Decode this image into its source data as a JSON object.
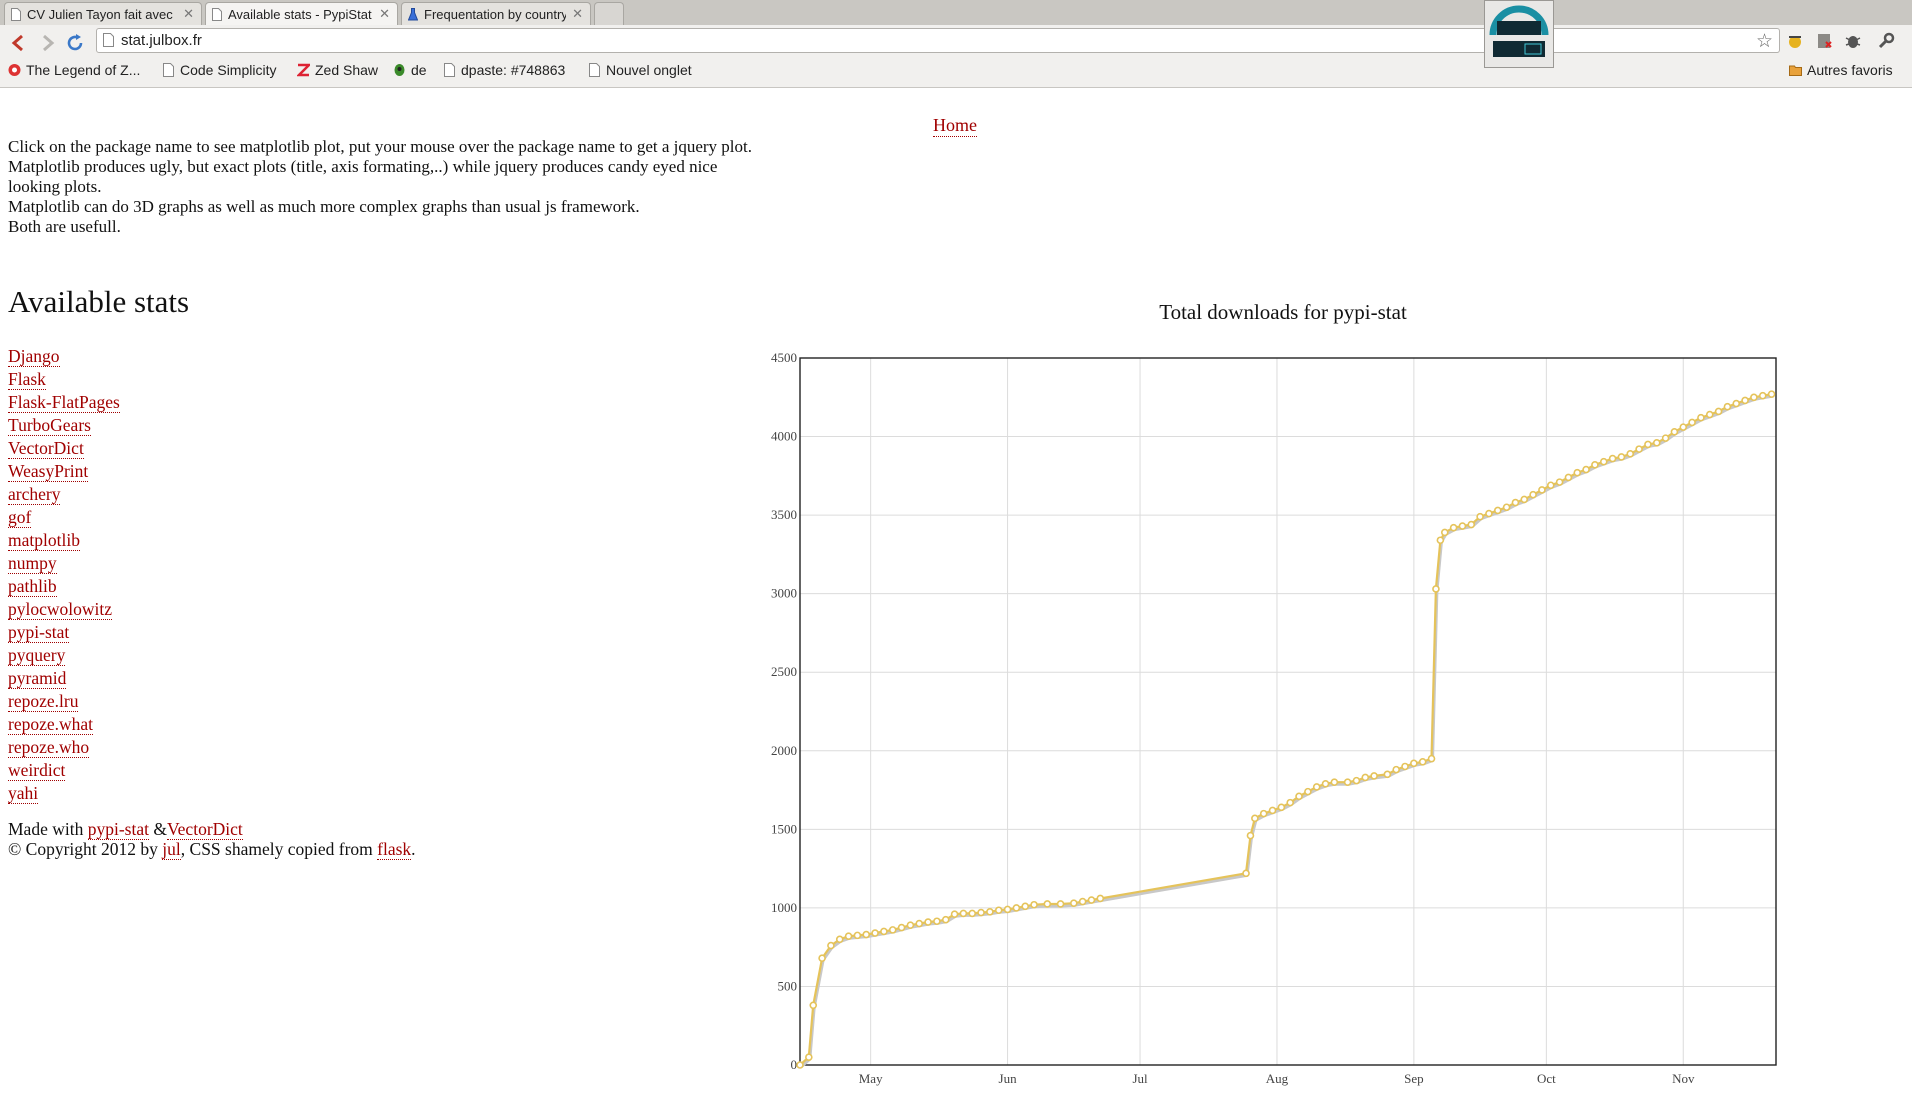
{
  "tabs": [
    {
      "label": "CV Julien Tayon fait avec i",
      "active": false
    },
    {
      "label": "Available stats - PypiStat",
      "active": true
    },
    {
      "label": "Frequentation by country",
      "active": false
    }
  ],
  "toolbar": {
    "url": "stat.julbox.fr"
  },
  "bookmarks": [
    "The Legend of Z...",
    "Code Simplicity",
    "Zed Shaw",
    "de",
    "dpaste: #748863",
    "Nouvel onglet"
  ],
  "bookmarks_other": "Autres favoris",
  "page": {
    "home_link": "Home",
    "intro": [
      "Click on the package name to see matplotlib plot, put your mouse over the package name to get a jquery plot.",
      "Matplotlib produces ugly, but exact plots (title, axis formating,..) while jquery produces candy eyed nice looking plots.",
      "Matplotlib can do 3D graphs as well as much more complex graphs than usual js framework.",
      "Both are usefull."
    ],
    "heading": "Available stats",
    "packages": [
      "Django",
      "Flask",
      "Flask-FlatPages",
      "TurboGears",
      "VectorDict",
      "WeasyPrint",
      "archery",
      "gof",
      "matplotlib",
      "numpy",
      "pathlib",
      "pylocwolowitz",
      "pypi-stat",
      "pyquery",
      "pyramid",
      "repoze.lru",
      "repoze.what",
      "repoze.who",
      "weirdict",
      "yahi"
    ],
    "footer": {
      "made_with": "Made with",
      "link1": "pypi-stat",
      "amp": " &",
      "link2": "VectorDict",
      "copyright_prefix": "© Copyright 2012 by",
      "author_link": "jul",
      "copyright_mid": ", CSS shamely copied from",
      "flask_link": "flask",
      "period": "."
    }
  },
  "chart_data": {
    "type": "line",
    "title": "Total downloads for pypi-stat",
    "x_ticks": [
      "May",
      "Jun",
      "Jul",
      "Aug",
      "Sep",
      "Oct",
      "Nov"
    ],
    "x_tick_dates": [
      "2012-05-01",
      "2012-06-01",
      "2012-07-01",
      "2012-08-01",
      "2012-09-01",
      "2012-10-01",
      "2012-11-01"
    ],
    "x_range": [
      "2012-04-15",
      "2012-11-22"
    ],
    "y_ticks": [
      0,
      500,
      1000,
      1500,
      2000,
      2500,
      3000,
      3500,
      4000,
      4500
    ],
    "ylim": [
      0,
      4500
    ],
    "grid": true,
    "line_color": "#e5c35a",
    "series": [
      {
        "points": [
          [
            "2012-04-15",
            0
          ],
          [
            "2012-04-17",
            50
          ],
          [
            "2012-04-18",
            380
          ],
          [
            "2012-04-20",
            680
          ],
          [
            "2012-04-22",
            760
          ],
          [
            "2012-04-24",
            800
          ],
          [
            "2012-04-26",
            820
          ],
          [
            "2012-04-28",
            825
          ],
          [
            "2012-04-30",
            830
          ],
          [
            "2012-05-02",
            840
          ],
          [
            "2012-05-04",
            850
          ],
          [
            "2012-05-06",
            860
          ],
          [
            "2012-05-08",
            875
          ],
          [
            "2012-05-10",
            890
          ],
          [
            "2012-05-12",
            900
          ],
          [
            "2012-05-14",
            910
          ],
          [
            "2012-05-16",
            915
          ],
          [
            "2012-05-18",
            925
          ],
          [
            "2012-05-20",
            960
          ],
          [
            "2012-05-22",
            965
          ],
          [
            "2012-05-24",
            965
          ],
          [
            "2012-05-26",
            970
          ],
          [
            "2012-05-28",
            975
          ],
          [
            "2012-05-30",
            985
          ],
          [
            "2012-06-01",
            990
          ],
          [
            "2012-06-03",
            1000
          ],
          [
            "2012-06-05",
            1010
          ],
          [
            "2012-06-07",
            1020
          ],
          [
            "2012-06-10",
            1025
          ],
          [
            "2012-06-13",
            1025
          ],
          [
            "2012-06-16",
            1030
          ],
          [
            "2012-06-18",
            1040
          ],
          [
            "2012-06-20",
            1050
          ],
          [
            "2012-06-22",
            1060
          ],
          [
            "2012-07-25",
            1220
          ],
          [
            "2012-07-26",
            1460
          ],
          [
            "2012-07-27",
            1570
          ],
          [
            "2012-07-29",
            1600
          ],
          [
            "2012-07-31",
            1620
          ],
          [
            "2012-08-02",
            1640
          ],
          [
            "2012-08-04",
            1670
          ],
          [
            "2012-08-06",
            1710
          ],
          [
            "2012-08-08",
            1740
          ],
          [
            "2012-08-10",
            1770
          ],
          [
            "2012-08-12",
            1790
          ],
          [
            "2012-08-14",
            1800
          ],
          [
            "2012-08-17",
            1800
          ],
          [
            "2012-08-19",
            1810
          ],
          [
            "2012-08-21",
            1830
          ],
          [
            "2012-08-23",
            1840
          ],
          [
            "2012-08-26",
            1850
          ],
          [
            "2012-08-28",
            1880
          ],
          [
            "2012-08-30",
            1900
          ],
          [
            "2012-09-01",
            1920
          ],
          [
            "2012-09-03",
            1930
          ],
          [
            "2012-09-05",
            1950
          ],
          [
            "2012-09-06",
            3030
          ],
          [
            "2012-09-07",
            3340
          ],
          [
            "2012-09-08",
            3390
          ],
          [
            "2012-09-10",
            3420
          ],
          [
            "2012-09-12",
            3430
          ],
          [
            "2012-09-14",
            3440
          ],
          [
            "2012-09-16",
            3490
          ],
          [
            "2012-09-18",
            3510
          ],
          [
            "2012-09-20",
            3530
          ],
          [
            "2012-09-22",
            3550
          ],
          [
            "2012-09-24",
            3580
          ],
          [
            "2012-09-26",
            3600
          ],
          [
            "2012-09-28",
            3630
          ],
          [
            "2012-09-30",
            3660
          ],
          [
            "2012-10-02",
            3690
          ],
          [
            "2012-10-04",
            3710
          ],
          [
            "2012-10-06",
            3740
          ],
          [
            "2012-10-08",
            3770
          ],
          [
            "2012-10-10",
            3790
          ],
          [
            "2012-10-12",
            3820
          ],
          [
            "2012-10-14",
            3840
          ],
          [
            "2012-10-16",
            3860
          ],
          [
            "2012-10-18",
            3870
          ],
          [
            "2012-10-20",
            3890
          ],
          [
            "2012-10-22",
            3920
          ],
          [
            "2012-10-24",
            3950
          ],
          [
            "2012-10-26",
            3960
          ],
          [
            "2012-10-28",
            3990
          ],
          [
            "2012-10-30",
            4030
          ],
          [
            "2012-11-01",
            4060
          ],
          [
            "2012-11-03",
            4090
          ],
          [
            "2012-11-05",
            4120
          ],
          [
            "2012-11-07",
            4140
          ],
          [
            "2012-11-09",
            4160
          ],
          [
            "2012-11-11",
            4190
          ],
          [
            "2012-11-13",
            4210
          ],
          [
            "2012-11-15",
            4230
          ],
          [
            "2012-11-17",
            4250
          ],
          [
            "2012-11-19",
            4260
          ],
          [
            "2012-11-21",
            4270
          ]
        ]
      }
    ]
  }
}
